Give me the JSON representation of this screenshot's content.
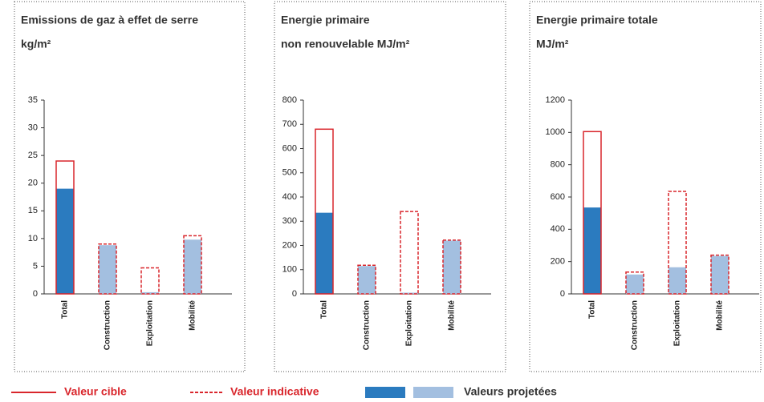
{
  "chart_data": [
    {
      "type": "bar",
      "title": "Emissions de gaz à effet de serre",
      "subtitle": "kg/m²",
      "categories": [
        "Total",
        "Construction",
        "Exploitation",
        "Mobilité"
      ],
      "series": [
        {
          "values": [
            24,
            9,
            4.7,
            10.5
          ],
          "color": "#d9262c",
          "styles": [
            "solid",
            "dashed",
            "dashed",
            "dashed"
          ]
        },
        {
          "values": [
            19,
            8.8,
            0.3,
            9.8
          ],
          "colors": [
            "#2b7bbf",
            "#a3bfe0",
            "#a3bfe0",
            "#a3bfe0"
          ]
        }
      ],
      "ylim": [
        0,
        35
      ],
      "yticks": [
        0,
        5,
        10,
        15,
        20,
        25,
        30,
        35
      ]
    },
    {
      "type": "bar",
      "title": "Energie primaire",
      "subtitle": "non renouvelable MJ/m²",
      "categories": [
        "Total",
        "Construction",
        "Exploitation",
        "Mobilité"
      ],
      "series": [
        {
          "values": [
            680,
            118,
            340,
            222
          ],
          "color": "#d9262c",
          "styles": [
            "solid",
            "dashed",
            "dashed",
            "dashed"
          ]
        },
        {
          "values": [
            335,
            115,
            5,
            220
          ],
          "colors": [
            "#2b7bbf",
            "#a3bfe0",
            "#a3bfe0",
            "#a3bfe0"
          ]
        }
      ],
      "ylim": [
        0,
        800
      ],
      "yticks": [
        0,
        100,
        200,
        300,
        400,
        500,
        600,
        700,
        800
      ]
    },
    {
      "type": "bar",
      "title": "Energie primaire totale",
      "subtitle": "MJ/m²",
      "categories": [
        "Total",
        "Construction",
        "Exploitation",
        "Mobilité"
      ],
      "series": [
        {
          "values": [
            1005,
            135,
            635,
            240
          ],
          "color": "#d9262c",
          "styles": [
            "solid",
            "dashed",
            "dashed",
            "dashed"
          ]
        },
        {
          "values": [
            535,
            120,
            165,
            235
          ],
          "colors": [
            "#2b7bbf",
            "#a3bfe0",
            "#a3bfe0",
            "#a3bfe0"
          ]
        }
      ],
      "ylim": [
        0,
        1200
      ],
      "yticks": [
        0,
        200,
        400,
        600,
        800,
        1000,
        1200
      ]
    }
  ],
  "legend": {
    "target": "Valeur cible",
    "indicative": "Valeur indicative",
    "projected": "Valeurs projetées",
    "red": "#d9262c",
    "dark": "#2b7bbf",
    "light": "#a3bfe0"
  }
}
